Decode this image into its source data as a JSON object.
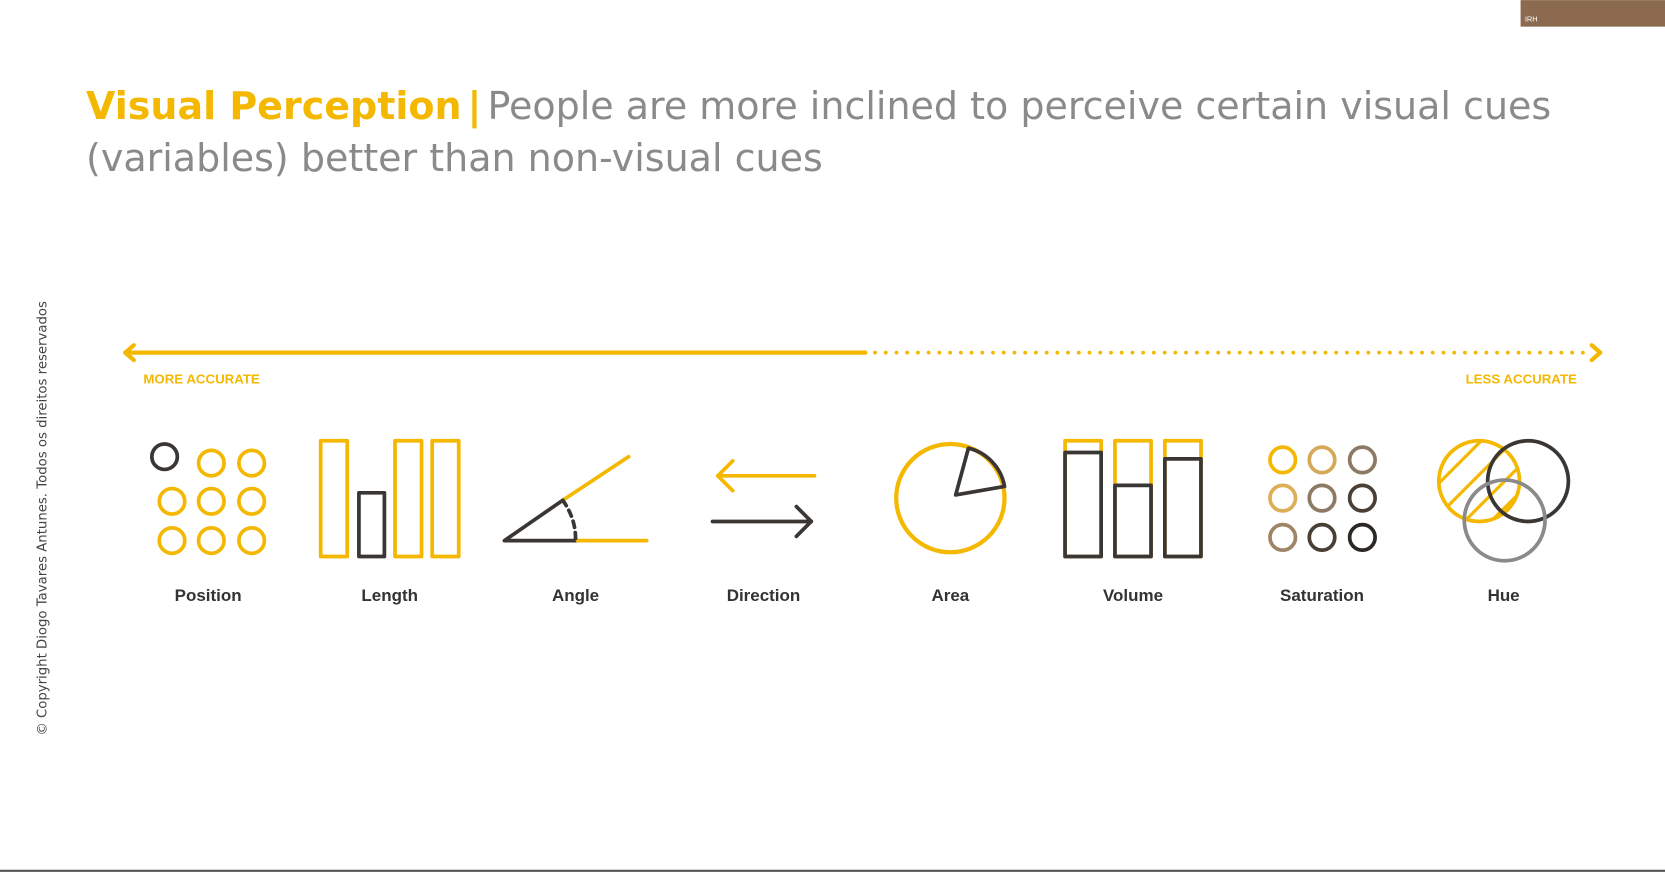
{
  "title": {
    "highlight": "Visual Perception",
    "separator": "|",
    "text": "People are more inclined to perceive certain visual cues (variables) better than non-visual cues"
  },
  "scale": {
    "left": "MORE ACCURATE",
    "right": "LESS ACCURATE"
  },
  "cues": [
    "Position",
    "Length",
    "Angle",
    "Direction",
    "Area",
    "Volume",
    "Saturation",
    "Hue"
  ],
  "copyright": "© Copyright Diogo Tavares Antunes. Todos os direitos reservados",
  "webcam": {
    "label": "IRH"
  }
}
